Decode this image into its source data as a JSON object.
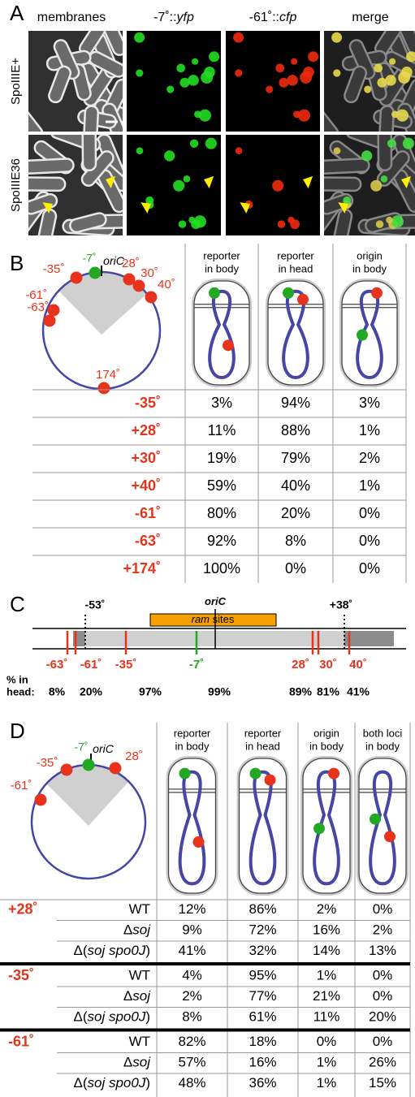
{
  "panel_a": {
    "label": "A",
    "columns": [
      "membranes",
      [
        "-7˚::",
        {
          "italic": "yfp"
        }
      ],
      [
        "-61˚::",
        {
          "italic": "cfp"
        }
      ],
      "merge"
    ],
    "rows": [
      "SpoIIIE+",
      "SpoIIIE36"
    ]
  },
  "panel_b": {
    "label": "B",
    "map": {
      "origin_locus": "-7˚",
      "origin": {
        "italic": "oriC"
      },
      "loci": [
        "-35˚",
        "28˚",
        "30˚",
        "40˚",
        "-61˚",
        "-63˚",
        "174˚"
      ]
    },
    "columns": [
      [
        "reporter",
        "in body"
      ],
      [
        "reporter",
        "in head"
      ],
      [
        "origin",
        "in body"
      ]
    ],
    "rows": [
      {
        "label": "-35˚",
        "cells": [
          "3%",
          "94%",
          "3%"
        ]
      },
      {
        "label": "+28˚",
        "cells": [
          "11%",
          "88%",
          "1%"
        ]
      },
      {
        "label": "+30˚",
        "cells": [
          "19%",
          "79%",
          "2%"
        ]
      },
      {
        "label": "+40˚",
        "cells": [
          "59%",
          "40%",
          "1%"
        ]
      },
      {
        "label": "-61˚",
        "cells": [
          "80%",
          "20%",
          "0%"
        ]
      },
      {
        "label": "-63˚",
        "cells": [
          "92%",
          "8%",
          "0%"
        ]
      },
      {
        "label": "+174˚",
        "cells": [
          "100%",
          "0%",
          "0%"
        ]
      }
    ]
  },
  "panel_c": {
    "label": "C",
    "markers": [
      "-53˚",
      "+38˚"
    ],
    "origin": {
      "italic": "oriC"
    },
    "sites": [
      {
        "italic": "ram"
      },
      " sites"
    ],
    "head_label": [
      "% in",
      "head:"
    ],
    "loci": [
      {
        "label": "-63˚",
        "head": "8%",
        "color": "#e8331c"
      },
      {
        "label": "-61˚",
        "head": "20%",
        "color": "#e8331c"
      },
      {
        "label": "-35˚",
        "head": "97%",
        "color": "#e8331c"
      },
      {
        "label": "-7˚",
        "head": "99%",
        "color": "#22a822"
      },
      {
        "label": "28˚",
        "head": "89%",
        "color": "#e8331c"
      },
      {
        "label": "30˚",
        "head": "81%",
        "color": "#e8331c"
      },
      {
        "label": "40˚",
        "head": "41%",
        "color": "#e8331c"
      }
    ]
  },
  "panel_d": {
    "label": "D",
    "map": {
      "origin_locus": "-7˚",
      "origin": {
        "italic": "oriC"
      },
      "loci": [
        "-35˚",
        "28˚",
        "-61˚"
      ]
    },
    "columns": [
      [
        "reporter",
        "in body"
      ],
      [
        "reporter",
        "in head"
      ],
      [
        "origin",
        "in body"
      ],
      [
        "both loci",
        "in body"
      ]
    ],
    "groups": [
      {
        "label": "+28˚",
        "rows": [
          {
            "strain": "WT",
            "cells": [
              "12%",
              "86%",
              "2%",
              "0%"
            ]
          },
          {
            "strain": [
              "Δ",
              {
                "italic": "soj"
              }
            ],
            "cells": [
              "9%",
              "72%",
              "16%",
              "2%"
            ]
          },
          {
            "strain": [
              "Δ(",
              {
                "italic": "soj spo0J"
              },
              ")"
            ],
            "cells": [
              "41%",
              "32%",
              "14%",
              "13%"
            ]
          }
        ]
      },
      {
        "label": "-35˚",
        "rows": [
          {
            "strain": "WT",
            "cells": [
              "4%",
              "95%",
              "1%",
              "0%"
            ]
          },
          {
            "strain": [
              "Δ",
              {
                "italic": "soj"
              }
            ],
            "cells": [
              "2%",
              "77%",
              "21%",
              "0%"
            ]
          },
          {
            "strain": [
              "Δ(",
              {
                "italic": "soj spo0J"
              },
              ")"
            ],
            "cells": [
              "8%",
              "61%",
              "11%",
              "20%"
            ]
          }
        ]
      },
      {
        "label": "-61˚",
        "rows": [
          {
            "strain": "WT",
            "cells": [
              "82%",
              "18%",
              "0%",
              "0%"
            ]
          },
          {
            "strain": [
              "Δ",
              {
                "italic": "soj"
              }
            ],
            "cells": [
              "57%",
              "16%",
              "1%",
              "26%"
            ]
          },
          {
            "strain": [
              "Δ(",
              {
                "italic": "soj spo0J"
              },
              ")"
            ],
            "cells": [
              "48%",
              "36%",
              "1%",
              "15%"
            ]
          }
        ]
      }
    ]
  }
}
